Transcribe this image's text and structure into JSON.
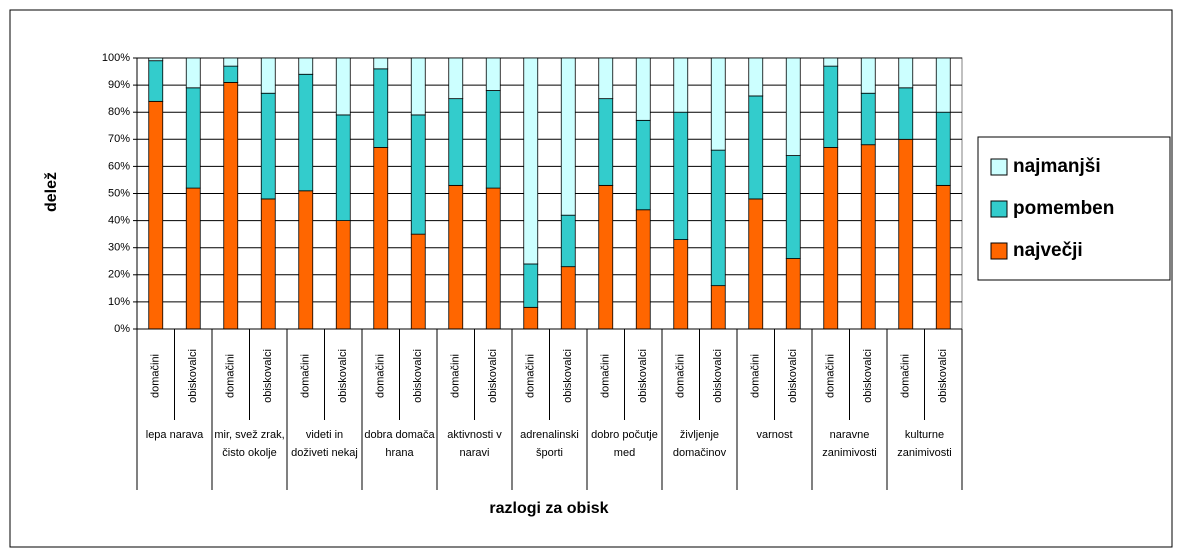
{
  "chart_data": {
    "type": "stacked_bar",
    "y_label": "delež",
    "x_label": "razlogi za obisk",
    "groups": [
      "lepa narava",
      "mir, svež zrak, čisto okolje",
      "videti in doživeti nekaj",
      "dobra domača hrana",
      "aktivnosti v naravi",
      "adrenalinski športi",
      "dobro počutje med",
      "življenje domačinov",
      "varnost",
      "naravne zanimivosti",
      "kulturne zanimivosti"
    ],
    "categories": [
      "domačini",
      "obiskovalci",
      "domačini",
      "obiskovalci",
      "domačini",
      "obiskovalci",
      "domačini",
      "obiskovalci",
      "domačini",
      "obiskovalci",
      "domačini",
      "obiskovalci",
      "domačini",
      "obiskovalci",
      "domačini",
      "obiskovalci",
      "domačini",
      "obiskovalci",
      "domačini",
      "obiskovalci",
      "domačini",
      "obiskovalci"
    ],
    "series": [
      {
        "name": "največji",
        "color": "#ff6600",
        "values": [
          84,
          52,
          91,
          48,
          51,
          40,
          67,
          35,
          53,
          52,
          8,
          23,
          53,
          44,
          33,
          16,
          48,
          26,
          67,
          68,
          70,
          53
        ]
      },
      {
        "name": "pomemben",
        "color": "#33cccc",
        "values": [
          15,
          37,
          6,
          39,
          43,
          39,
          29,
          44,
          32,
          36,
          16,
          19,
          32,
          33,
          47,
          50,
          38,
          38,
          30,
          19,
          19,
          27
        ]
      },
      {
        "name": "najmanjši",
        "color": "#ccffff",
        "values": [
          1,
          11,
          3,
          13,
          6,
          21,
          4,
          21,
          15,
          12,
          76,
          58,
          15,
          23,
          20,
          34,
          14,
          36,
          3,
          13,
          11,
          20
        ]
      }
    ],
    "ylim": [
      0,
      100
    ],
    "yticks": [
      {
        "value": 0,
        "label": "0%"
      },
      {
        "value": 10,
        "label": "10%"
      },
      {
        "value": 20,
        "label": "20%"
      },
      {
        "value": 30,
        "label": "30%"
      },
      {
        "value": 40,
        "label": "40%"
      },
      {
        "value": 50,
        "label": "50%"
      },
      {
        "value": 60,
        "label": "60%"
      },
      {
        "value": 70,
        "label": "70%"
      },
      {
        "value": 80,
        "label": "80%"
      },
      {
        "value": 90,
        "label": "90%"
      },
      {
        "value": 100,
        "label": "100%"
      }
    ],
    "grid": true,
    "legend": "right"
  }
}
